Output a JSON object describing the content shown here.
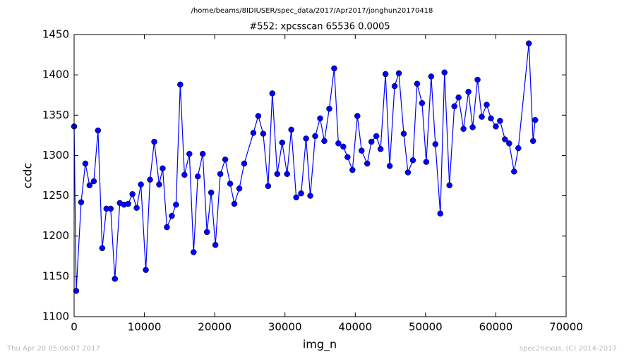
{
  "chart_data": {
    "type": "line",
    "suptitle": "/home/beams/8IDIUSER/spec_data/2017/Apr2017/jonghun20170418",
    "title": "#552: xpcsscan 65536 0.0005",
    "x_label": "img_n",
    "y_label": "ccdc",
    "timestamp": "Thu Apr 20 05:06:07 2017",
    "credit": "spec2nexus, (C) 2014-2017",
    "xlim": [
      0,
      70000
    ],
    "ylim": [
      1100,
      1450
    ],
    "xticks": [
      0,
      10000,
      20000,
      30000,
      40000,
      50000,
      60000,
      70000
    ],
    "yticks": [
      1100,
      1150,
      1200,
      1250,
      1300,
      1350,
      1400,
      1450
    ],
    "grid": false,
    "series": [
      {
        "color": "#0000ff",
        "x": [
          0,
          300,
          1000,
          1600,
          2200,
          2800,
          3400,
          4000,
          4600,
          5200,
          5800,
          6500,
          7100,
          7700,
          8300,
          8900,
          9500,
          10200,
          10800,
          11400,
          12100,
          12600,
          13200,
          13900,
          14500,
          15100,
          15700,
          16400,
          17000,
          17600,
          18300,
          18900,
          19500,
          20100,
          20800,
          21500,
          22200,
          22800,
          23500,
          24200,
          25500,
          26200,
          26900,
          27600,
          28200,
          28900,
          29600,
          30300,
          30900,
          31600,
          32300,
          33000,
          33600,
          34300,
          35000,
          35600,
          36300,
          37000,
          37600,
          38300,
          38900,
          39600,
          40300,
          40900,
          41700,
          42300,
          43000,
          43600,
          44300,
          44900,
          45600,
          46200,
          46900,
          47500,
          48200,
          48800,
          49500,
          50100,
          50800,
          51400,
          52100,
          52700,
          53400,
          54100,
          54700,
          55400,
          56100,
          56700,
          57400,
          58000,
          58700,
          59300,
          60000,
          60600,
          61300,
          61900,
          62600,
          63200,
          64700,
          65300,
          65600
        ],
        "values": [
          1336,
          1132,
          1242,
          1290,
          1263,
          1268,
          1331,
          1185,
          1234,
          1234,
          1147,
          1241,
          1239,
          1240,
          1252,
          1235,
          1264,
          1158,
          1270,
          1317,
          1264,
          1284,
          1211,
          1225,
          1239,
          1388,
          1276,
          1302,
          1180,
          1274,
          1302,
          1205,
          1254,
          1189,
          1277,
          1295,
          1265,
          1240,
          1259,
          1290,
          1328,
          1349,
          1327,
          1262,
          1377,
          1277,
          1316,
          1277,
          1332,
          1248,
          1253,
          1321,
          1250,
          1324,
          1346,
          1318,
          1358,
          1408,
          1315,
          1311,
          1298,
          1282,
          1349,
          1306,
          1290,
          1317,
          1324,
          1308,
          1401,
          1287,
          1386,
          1402,
          1327,
          1279,
          1294,
          1389,
          1365,
          1292,
          1398,
          1314,
          1228,
          1403,
          1263,
          1361,
          1372,
          1333,
          1379,
          1335,
          1394,
          1348,
          1363,
          1346,
          1336,
          1343,
          1320,
          1315,
          1280,
          1309,
          1439,
          1318,
          1344
        ]
      }
    ]
  }
}
